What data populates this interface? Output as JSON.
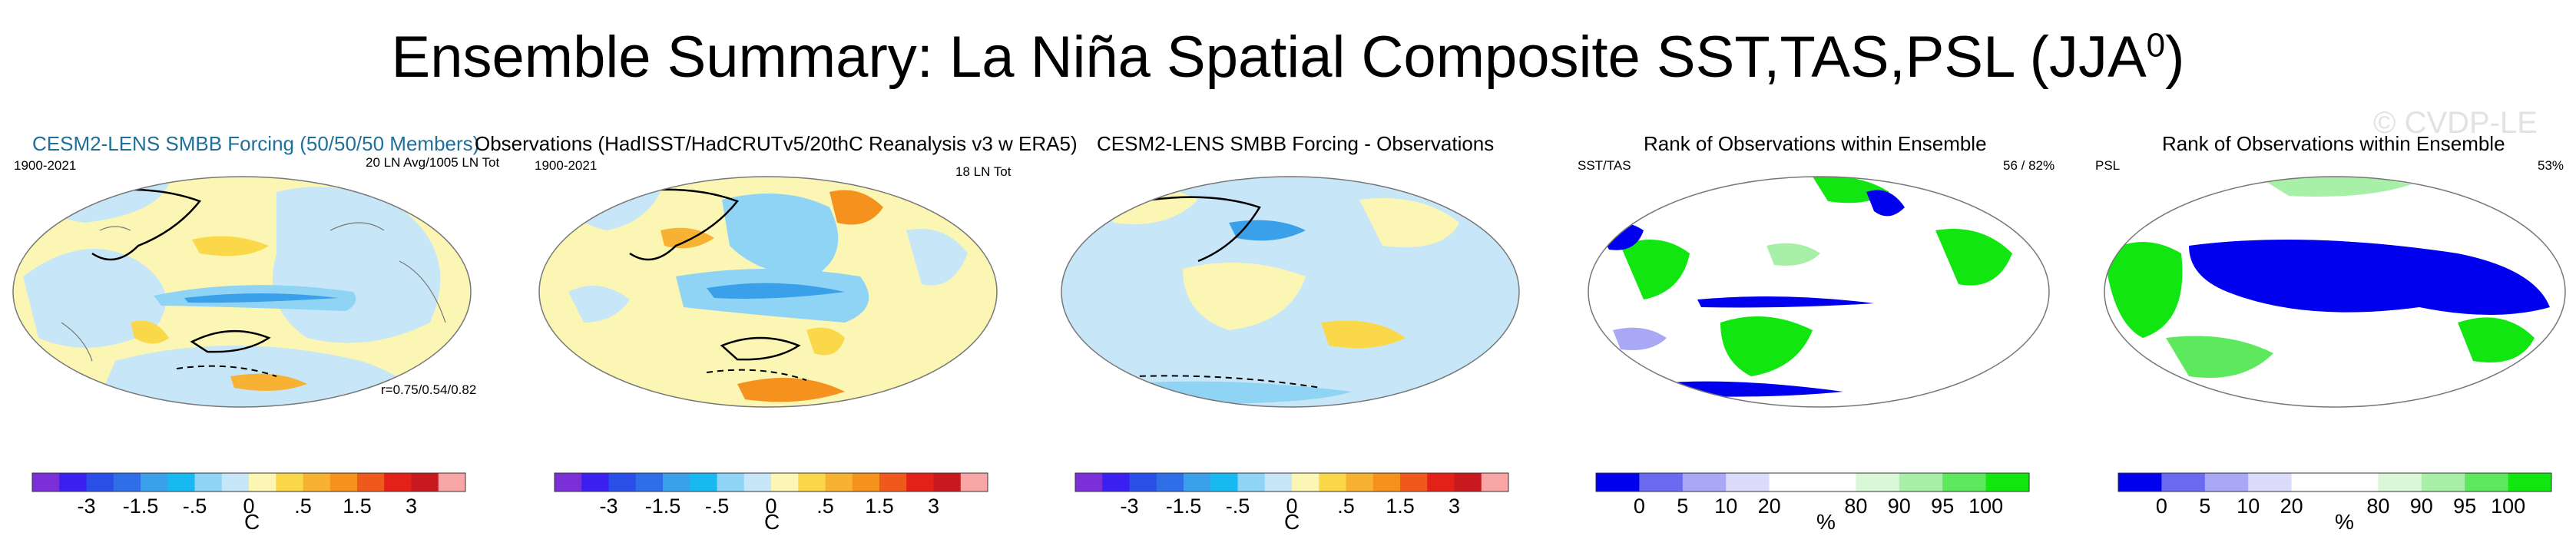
{
  "figure": {
    "title_main": "Ensemble Summary: La Niña Spatial Composite SST,TAS,PSL (JJA",
    "title_sup": "0",
    "title_close": ")",
    "watermark": "© CVDP-LE"
  },
  "chart_data": [
    {
      "type": "heatmap",
      "id": "ensemble-mean",
      "title_part1": "CESM2-LENS SMBB Forcing (50/50/50 Members)",
      "title_part2": "",
      "left_label": "1900-2021",
      "right_label": "20 LN Avg/1005 LN Tot",
      "bottom_label": "r=0.75/0.54/0.82",
      "unit": "C",
      "colorbar_ticks": [
        "-3",
        "-1.5",
        "-.5",
        "0",
        ".5",
        "1.5",
        "3"
      ],
      "colorbar_colors": [
        "#7b2fd6",
        "#3a1ff0",
        "#2a4ee8",
        "#2e6fe8",
        "#3aa0ea",
        "#18b8f0",
        "#8fd3f5",
        "#c7e7f8",
        "#fbf6b4",
        "#fbd84a",
        "#f7b233",
        "#f5921e",
        "#ef5a1c",
        "#e32119",
        "#c6181d",
        "#f8a6a6"
      ],
      "features": {
        "enso_tongue": "cold",
        "pacific_horseshoe": "warm",
        "southern_ocean": "mixed"
      }
    },
    {
      "type": "heatmap",
      "id": "observations",
      "title_part1": "Observations (HadISST/HadCRUTv5/20thC Reanalysis v3 w ERA5)",
      "title_part2": "",
      "left_label": "1900-2021",
      "right_label": "18 LN Tot",
      "bottom_label": "",
      "unit": "C",
      "colorbar_ticks": [
        "-3",
        "-1.5",
        "-.5",
        "0",
        ".5",
        "1.5",
        "3"
      ],
      "colorbar_colors": [
        "#7b2fd6",
        "#3a1ff0",
        "#2a4ee8",
        "#2e6fe8",
        "#3aa0ea",
        "#18b8f0",
        "#8fd3f5",
        "#c7e7f8",
        "#fbf6b4",
        "#fbd84a",
        "#f7b233",
        "#f5921e",
        "#ef5a1c",
        "#e32119",
        "#c6181d",
        "#f8a6a6"
      ]
    },
    {
      "type": "heatmap",
      "id": "difference",
      "title_part1": "CESM2-LENS SMBB Forcing - Observations",
      "title_part2": "",
      "left_label": "",
      "right_label": "",
      "bottom_label": "",
      "unit": "C",
      "colorbar_ticks": [
        "-3",
        "-1.5",
        "-.5",
        "0",
        ".5",
        "1.5",
        "3"
      ],
      "colorbar_colors": [
        "#7b2fd6",
        "#3a1ff0",
        "#2a4ee8",
        "#2e6fe8",
        "#3aa0ea",
        "#18b8f0",
        "#8fd3f5",
        "#c7e7f8",
        "#fbf6b4",
        "#fbd84a",
        "#f7b233",
        "#f5921e",
        "#ef5a1c",
        "#e32119",
        "#c6181d",
        "#f8a6a6"
      ]
    },
    {
      "type": "heatmap",
      "id": "rank-sst-tas",
      "title_part1": "Rank of Observations within Ensemble",
      "title_part2": "",
      "left_label": "SST/TAS",
      "right_label": "56 /  82%",
      "bottom_label": "",
      "unit": "%",
      "colorbar_ticks": [
        "0",
        "5",
        "10",
        "20",
        "80",
        "90",
        "95",
        "100"
      ],
      "colorbar_colors": [
        "#0000ee",
        "#6a6af0",
        "#a8a8f5",
        "#dcdcfa",
        "#ffffff",
        "#ffffff",
        "#d8f8d8",
        "#a8f0a8",
        "#5ee85e",
        "#11e611"
      ]
    },
    {
      "type": "heatmap",
      "id": "rank-psl",
      "title_part1": "Rank of Observations within Ensemble",
      "title_part2": "",
      "left_label": "PSL",
      "right_label": "53%",
      "bottom_label": "",
      "unit": "%",
      "colorbar_ticks": [
        "0",
        "5",
        "10",
        "20",
        "80",
        "90",
        "95",
        "100"
      ],
      "colorbar_colors": [
        "#0000ee",
        "#6a6af0",
        "#a8a8f5",
        "#dcdcfa",
        "#ffffff",
        "#ffffff",
        "#d8f8d8",
        "#a8f0a8",
        "#5ee85e",
        "#11e611"
      ]
    }
  ]
}
